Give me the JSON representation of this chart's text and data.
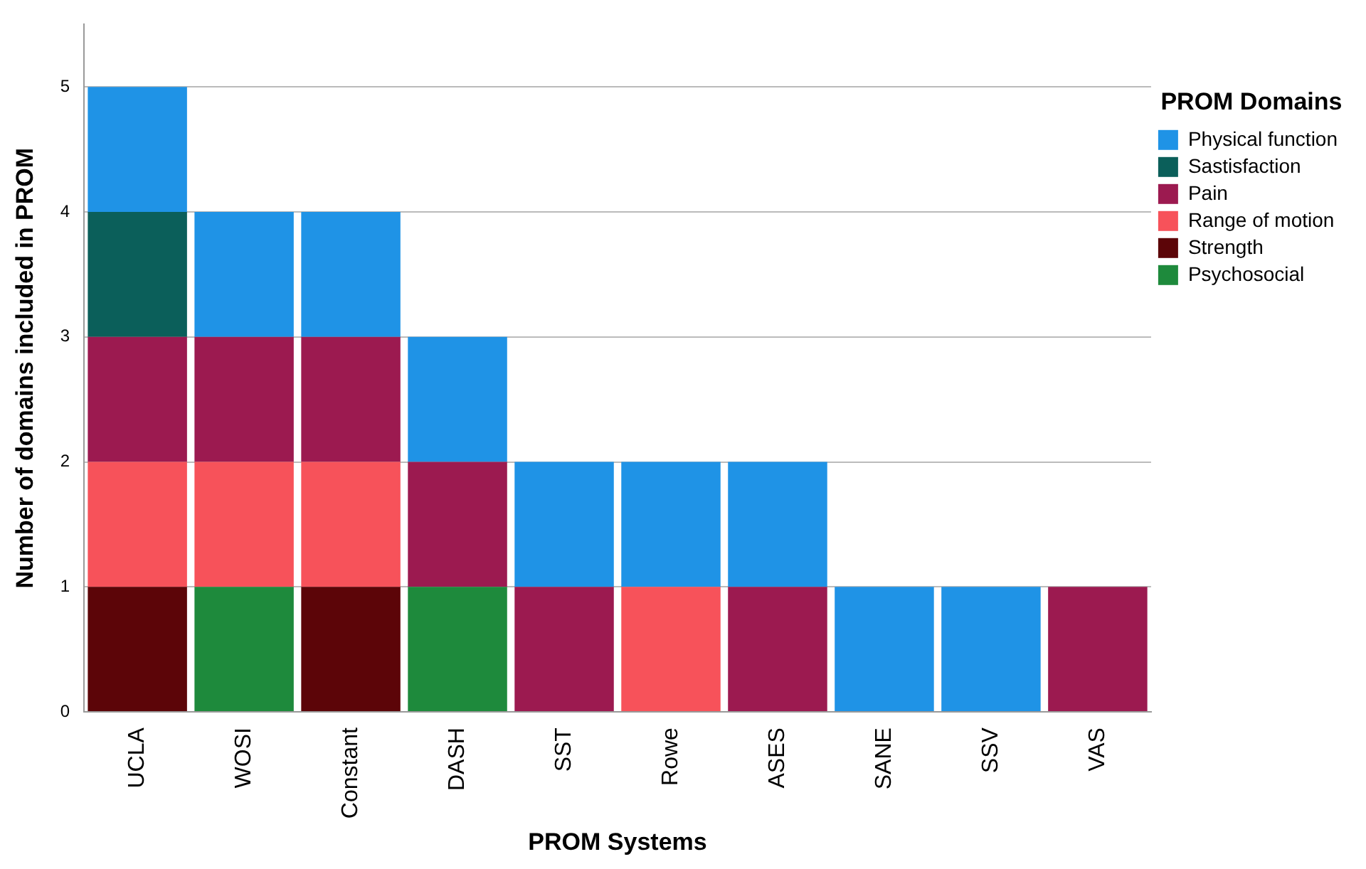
{
  "chart_data": {
    "type": "bar",
    "stacked": true,
    "xlabel": "PROM Systems",
    "ylabel": "Number of domains included in PROM",
    "legend_title": "PROM Domains",
    "legend": "right",
    "categories": [
      "UCLA",
      "WOSI",
      "Constant",
      "DASH",
      "SST",
      "Rowe",
      "ASES",
      "SANE",
      "SSV",
      "VAS"
    ],
    "series": [
      {
        "name": "Psychosocial",
        "color": "#1e8a3c",
        "values": [
          null,
          1,
          null,
          1,
          null,
          null,
          null,
          null,
          null,
          null
        ]
      },
      {
        "name": "Strength",
        "color": "#5c0508",
        "values": [
          1,
          null,
          1,
          null,
          null,
          null,
          null,
          null,
          null,
          null
        ]
      },
      {
        "name": "Range of motion",
        "color": "#f7525a",
        "values": [
          1,
          1,
          1,
          null,
          null,
          1,
          null,
          null,
          null,
          null
        ]
      },
      {
        "name": "Pain",
        "color": "#9c1a50",
        "values": [
          1,
          1,
          1,
          1,
          1,
          null,
          1,
          null,
          null,
          1
        ]
      },
      {
        "name": "Sastisfaction",
        "color": "#0b5f5a",
        "values": [
          1,
          null,
          null,
          null,
          null,
          null,
          null,
          null,
          null,
          null
        ]
      },
      {
        "name": "Physical function",
        "color": "#1f93e6",
        "values": [
          1,
          1,
          1,
          1,
          1,
          1,
          1,
          1,
          1,
          null
        ]
      }
    ],
    "ylim": [
      0,
      5.5
    ],
    "yticks": [
      0,
      1,
      2,
      3,
      4,
      5
    ],
    "grid": "y"
  }
}
